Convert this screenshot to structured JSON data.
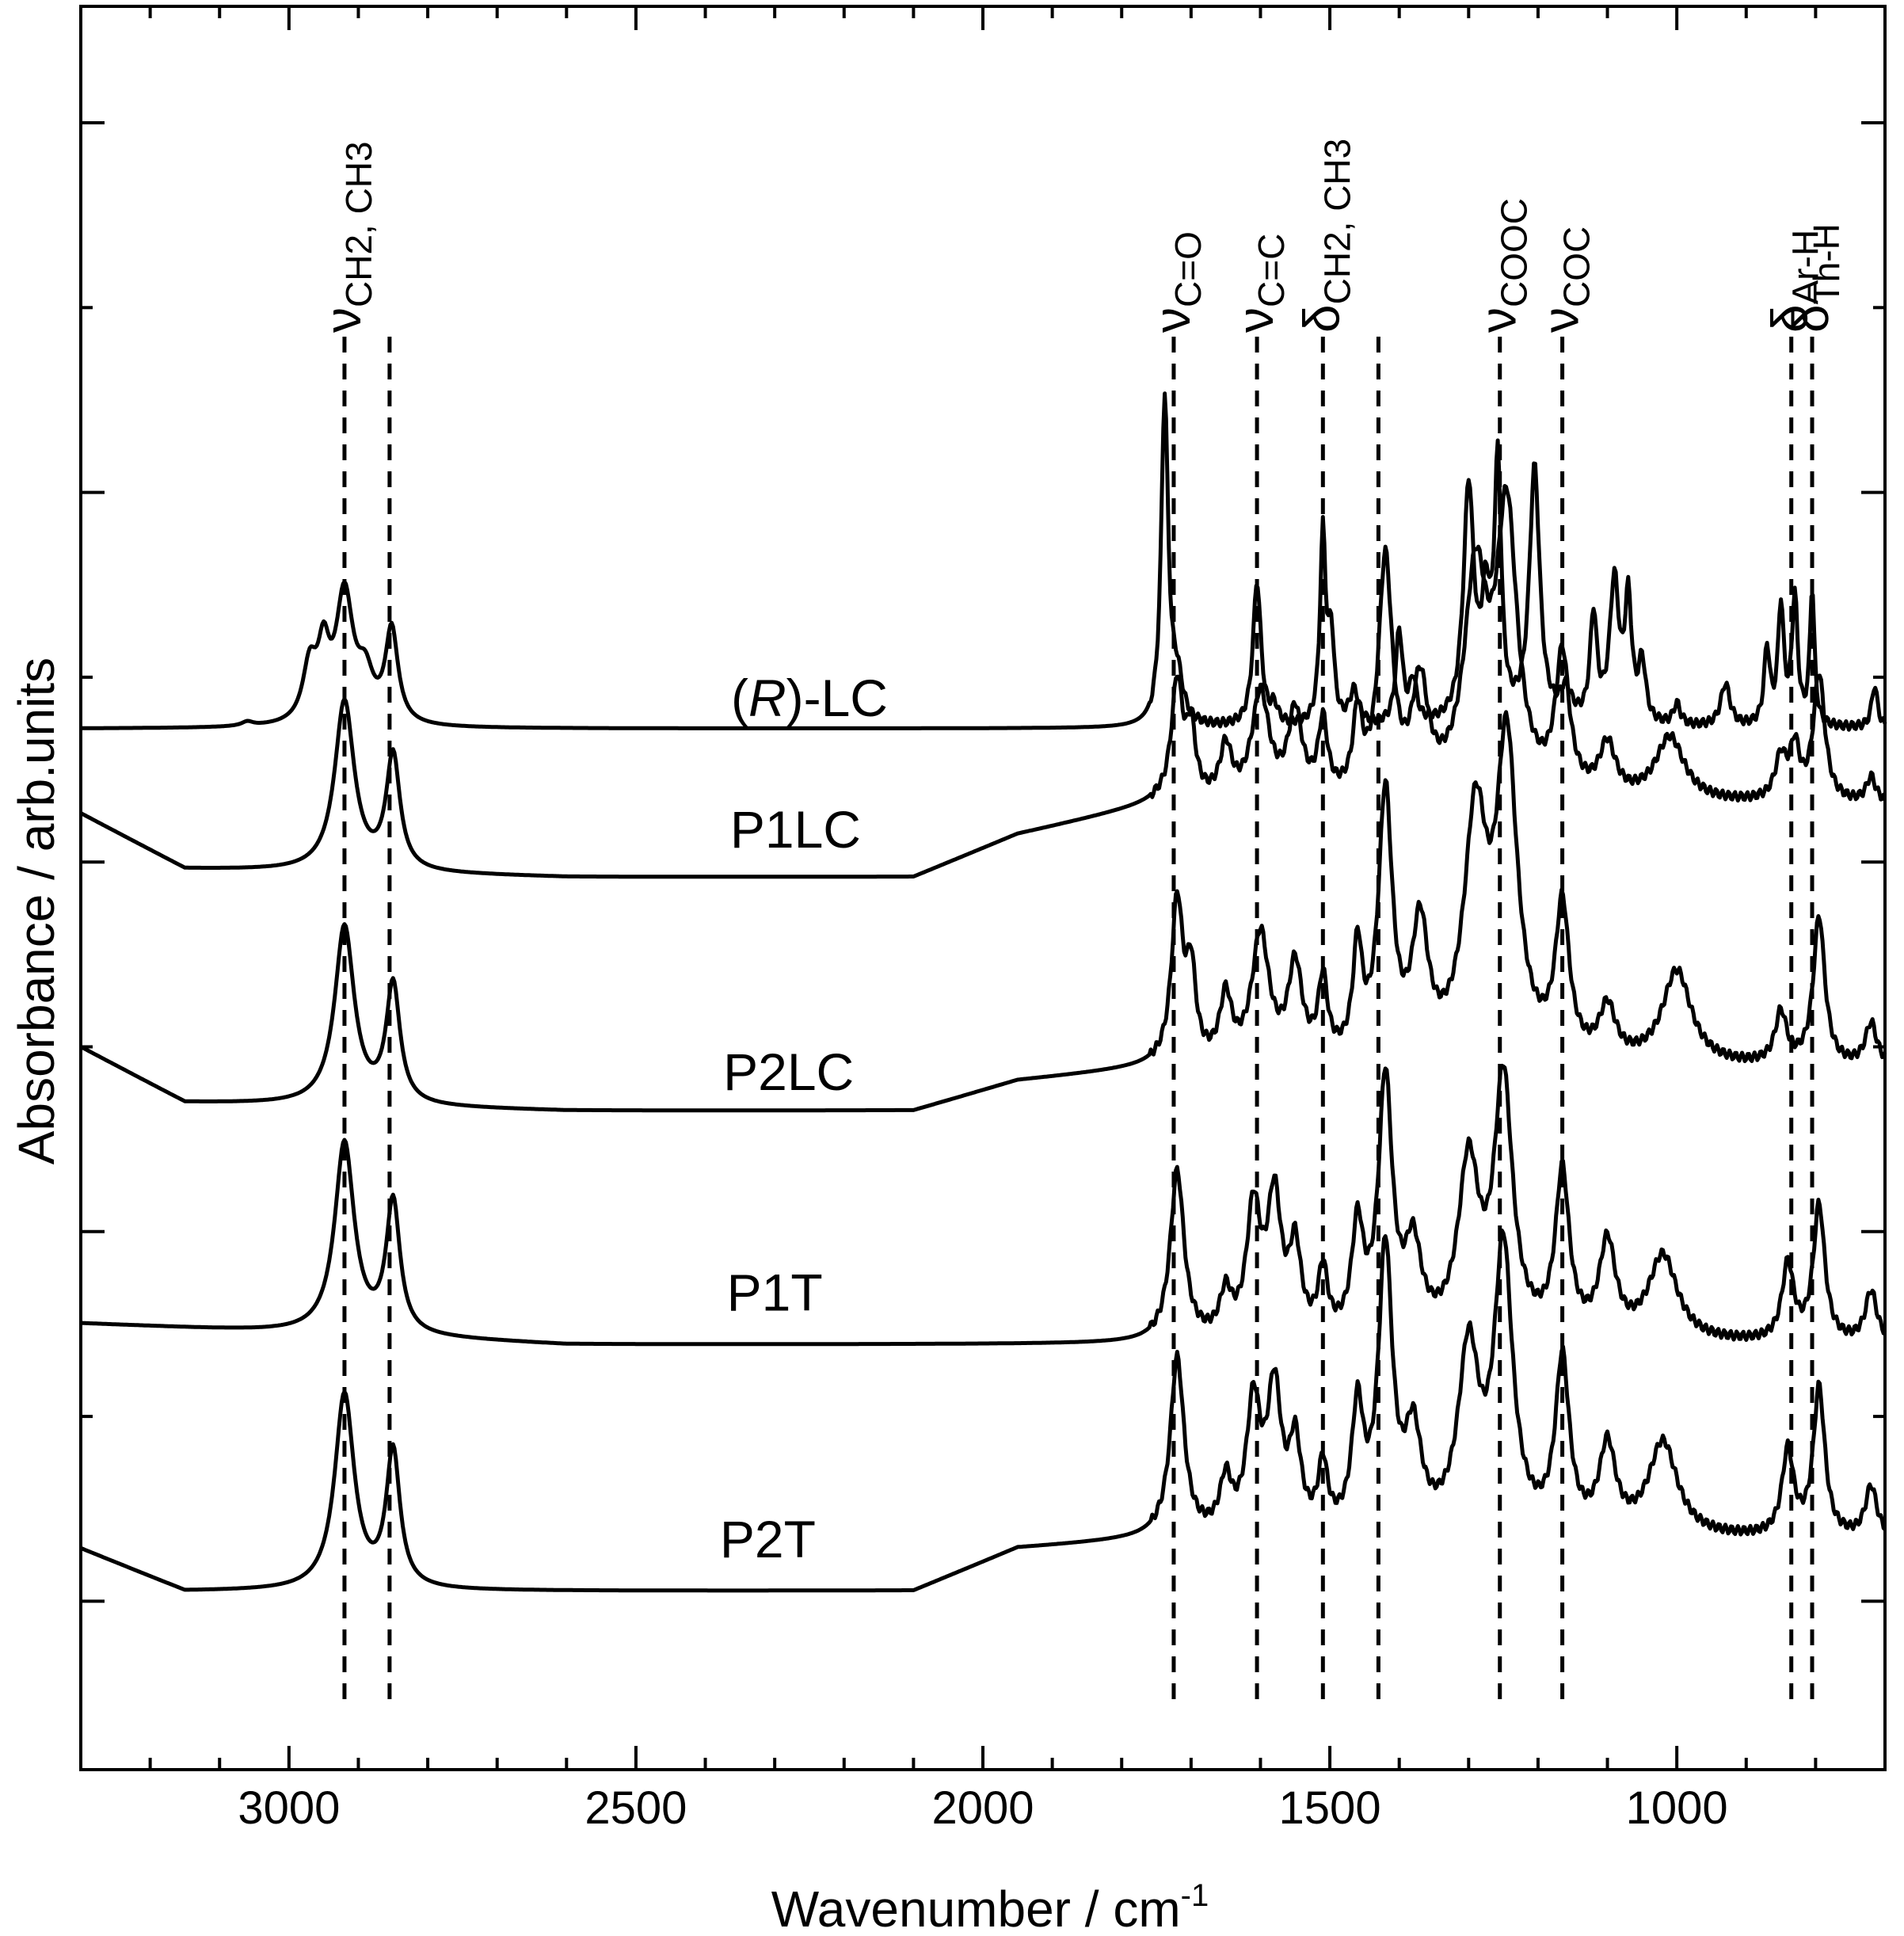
{
  "chart_data": {
    "type": "line",
    "xlabel": "Wavenumber / cm",
    "xlabel_sup": "-1",
    "ylabel": "Absorbance / arb.units",
    "xlim": [
      3300,
      700
    ],
    "x_reversed": true,
    "x_ticks": [
      3000,
      2500,
      2000,
      1500,
      1000
    ],
    "y_tick_labels": "none",
    "grid": false,
    "band_lines": [
      {
        "pos": 2920,
        "main": "ν",
        "sub": "CH2, CH3"
      },
      {
        "pos": 2855,
        "main": "",
        "sub": ""
      },
      {
        "pos": 1725,
        "main": "ν",
        "sub": "C=O"
      },
      {
        "pos": 1605,
        "main": "ν",
        "sub": "C=C"
      },
      {
        "pos": 1510,
        "main": "δ",
        "sub": "CH2, CH3"
      },
      {
        "pos": 1430,
        "main": "",
        "sub": ""
      },
      {
        "pos": 1255,
        "main": "ν",
        "sub": "COOC"
      },
      {
        "pos": 1165,
        "main": "ν",
        "sub": "COC"
      },
      {
        "pos": 835,
        "main": "δ",
        "sub": "Ar-H"
      },
      {
        "pos": 805,
        "main": "δ",
        "sub": "Th-H"
      }
    ],
    "series": [
      {
        "name": "(R)-LC",
        "label_prefix": "(",
        "label_italic": "R",
        "label_suffix": ")-LC",
        "label_x": 2250,
        "label_y": 0.03,
        "baseline": 0.0,
        "peaks": [
          [
            2970,
            0.13,
            12
          ],
          [
            2950,
            0.15,
            10
          ],
          [
            2920,
            0.3,
            15
          ],
          [
            2890,
            0.1,
            14
          ],
          [
            2852,
            0.22,
            11
          ],
          [
            3060,
            0.01,
            10
          ],
          [
            1738,
            0.77,
            6
          ],
          [
            1720,
            0.1,
            10
          ],
          [
            1605,
            0.34,
            7
          ],
          [
            1580,
            0.04,
            6
          ],
          [
            1510,
            0.45,
            5
          ],
          [
            1498,
            0.2,
            5
          ],
          [
            1465,
            0.08,
            8
          ],
          [
            1400,
            0.22,
            6
          ],
          [
            1380,
            0.1,
            6
          ],
          [
            1300,
            0.55,
            9
          ],
          [
            1275,
            0.25,
            8
          ],
          [
            1258,
            0.58,
            6
          ],
          [
            1205,
            0.6,
            9
          ],
          [
            1160,
            0.07,
            10
          ],
          [
            1120,
            0.25,
            6
          ],
          [
            1090,
            0.33,
            8
          ],
          [
            1070,
            0.28,
            6
          ],
          [
            1050,
            0.14,
            6
          ],
          [
            1000,
            0.05,
            6
          ],
          [
            930,
            0.1,
            8
          ],
          [
            870,
            0.18,
            5
          ],
          [
            850,
            0.28,
            5
          ],
          [
            830,
            0.3,
            5
          ],
          [
            805,
            0.32,
            4
          ],
          [
            715,
            0.1,
            5
          ]
        ]
      },
      {
        "name": "P1LC",
        "label_x": 2270,
        "label_y": -0.28,
        "baseline": -0.35,
        "edge": [
          [
            3300,
            -0.2
          ],
          [
            3150,
            -0.33
          ],
          [
            2600,
            -0.35
          ],
          [
            2100,
            -0.35
          ],
          [
            1950,
            -0.25
          ],
          [
            1750,
            -0.18
          ]
        ],
        "peaks": [
          [
            2920,
            0.4,
            17
          ],
          [
            2850,
            0.27,
            12
          ],
          [
            1720,
            0.28,
            10
          ],
          [
            1700,
            0.15,
            8
          ],
          [
            1650,
            0.12,
            10
          ],
          [
            1600,
            0.25,
            15
          ],
          [
            1550,
            0.2,
            12
          ],
          [
            1510,
            0.17,
            8
          ],
          [
            1460,
            0.18,
            8
          ],
          [
            1420,
            0.55,
            12
          ],
          [
            1370,
            0.25,
            14
          ],
          [
            1290,
            0.5,
            20
          ],
          [
            1245,
            0.65,
            18
          ],
          [
            1165,
            0.32,
            12
          ],
          [
            1100,
            0.12,
            14
          ],
          [
            1010,
            0.15,
            25
          ],
          [
            850,
            0.1,
            10
          ],
          [
            830,
            0.12,
            8
          ],
          [
            795,
            0.3,
            10
          ],
          [
            720,
            0.06,
            8
          ]
        ]
      },
      {
        "name": "P2LC",
        "label_x": 2280,
        "label_y": -0.85,
        "baseline": -0.9,
        "edge": [
          [
            3300,
            -0.75
          ],
          [
            3150,
            -0.88
          ],
          [
            2600,
            -0.9
          ],
          [
            2100,
            -0.9
          ],
          [
            1950,
            -0.83
          ],
          [
            1750,
            -0.8
          ]
        ],
        "peaks": [
          [
            2920,
            0.42,
            17
          ],
          [
            2850,
            0.28,
            12
          ],
          [
            1720,
            0.38,
            10
          ],
          [
            1700,
            0.2,
            8
          ],
          [
            1650,
            0.15,
            10
          ],
          [
            1600,
            0.3,
            15
          ],
          [
            1550,
            0.22,
            12
          ],
          [
            1510,
            0.18,
            8
          ],
          [
            1460,
            0.25,
            8
          ],
          [
            1420,
            0.62,
            12
          ],
          [
            1370,
            0.3,
            14
          ],
          [
            1290,
            0.55,
            20
          ],
          [
            1245,
            0.72,
            18
          ],
          [
            1165,
            0.35,
            12
          ],
          [
            1100,
            0.12,
            14
          ],
          [
            1000,
            0.22,
            25
          ],
          [
            850,
            0.12,
            10
          ],
          [
            795,
            0.35,
            10
          ],
          [
            720,
            0.1,
            10
          ]
        ]
      },
      {
        "name": "P1T",
        "label_x": 2300,
        "label_y": -1.37,
        "baseline": -1.45,
        "edge": [
          [
            3300,
            -1.4
          ],
          [
            2600,
            -1.45
          ],
          [
            2000,
            -1.45
          ],
          [
            1750,
            -1.45
          ]
        ],
        "peaks": [
          [
            2920,
            0.45,
            17
          ],
          [
            2850,
            0.31,
            12
          ],
          [
            1720,
            0.4,
            12
          ],
          [
            1650,
            0.1,
            10
          ],
          [
            1610,
            0.3,
            12
          ],
          [
            1580,
            0.32,
            12
          ],
          [
            1550,
            0.2,
            10
          ],
          [
            1510,
            0.15,
            8
          ],
          [
            1460,
            0.25,
            10
          ],
          [
            1420,
            0.6,
            12
          ],
          [
            1380,
            0.2,
            14
          ],
          [
            1300,
            0.4,
            18
          ],
          [
            1250,
            0.6,
            16
          ],
          [
            1165,
            0.38,
            12
          ],
          [
            1100,
            0.22,
            14
          ],
          [
            1020,
            0.2,
            25
          ],
          [
            840,
            0.18,
            10
          ],
          [
            795,
            0.32,
            10
          ],
          [
            720,
            0.12,
            10
          ]
        ]
      },
      {
        "name": "P2T",
        "label_x": 2310,
        "label_y": -1.95,
        "baseline": -2.03,
        "edge": [
          [
            3300,
            -1.93
          ],
          [
            3150,
            -2.03
          ],
          [
            2600,
            -2.03
          ],
          [
            2100,
            -2.03
          ],
          [
            1950,
            -1.93
          ],
          [
            1750,
            -1.91
          ]
        ],
        "peaks": [
          [
            2920,
            0.46,
            17
          ],
          [
            2850,
            0.32,
            12
          ],
          [
            1720,
            0.42,
            12
          ],
          [
            1650,
            0.12,
            10
          ],
          [
            1610,
            0.3,
            12
          ],
          [
            1580,
            0.33,
            12
          ],
          [
            1550,
            0.2,
            10
          ],
          [
            1510,
            0.15,
            8
          ],
          [
            1460,
            0.28,
            10
          ],
          [
            1420,
            0.66,
            12
          ],
          [
            1380,
            0.22,
            14
          ],
          [
            1300,
            0.42,
            18
          ],
          [
            1250,
            0.66,
            16
          ],
          [
            1165,
            0.4,
            12
          ],
          [
            1100,
            0.2,
            14
          ],
          [
            1020,
            0.22,
            25
          ],
          [
            840,
            0.2,
            10
          ],
          [
            795,
            0.35,
            10
          ],
          [
            720,
            0.12,
            10
          ]
        ]
      }
    ]
  }
}
